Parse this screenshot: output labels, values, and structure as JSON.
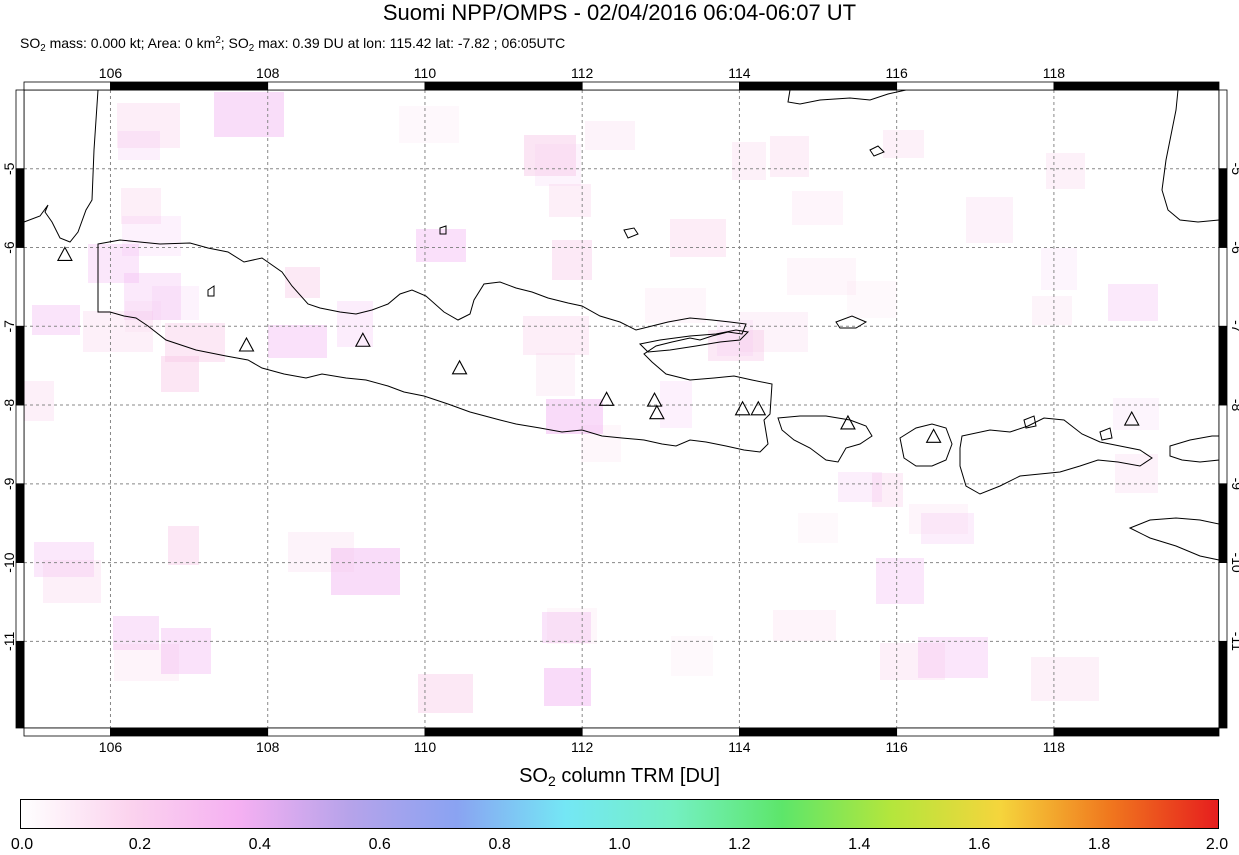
{
  "title": "Suomi NPP/OMPS - 02/04/2016 06:04-06:07 UT",
  "subtitle": {
    "part1": "SO",
    "sub1": "2",
    "part2": " mass: 0.000 kt; Area: 0 km",
    "sup1": "2",
    "part3": "; SO",
    "sub2": "2",
    "part4": " max: 0.39 DU at lon: 115.42 lat: -7.82 ; 06:05UTC"
  },
  "map": {
    "lon_range": [
      104.9,
      120.1
    ],
    "lat_range": [
      -12.1,
      -4.0
    ],
    "lon_ticks": [
      106,
      108,
      110,
      112,
      114,
      116,
      118
    ],
    "lat_ticks": [
      -5,
      -6,
      -7,
      -8,
      -9,
      -10,
      -11
    ],
    "volcano_markers": [
      {
        "lon": 105.42,
        "lat": -6.1
      },
      {
        "lon": 107.73,
        "lat": -7.25
      },
      {
        "lon": 109.21,
        "lat": -7.19
      },
      {
        "lon": 110.44,
        "lat": -7.54
      },
      {
        "lon": 112.31,
        "lat": -7.94
      },
      {
        "lon": 112.92,
        "lat": -7.95
      },
      {
        "lon": 112.95,
        "lat": -8.11
      },
      {
        "lon": 114.04,
        "lat": -8.06
      },
      {
        "lon": 114.24,
        "lat": -8.06
      },
      {
        "lon": 115.38,
        "lat": -8.24
      },
      {
        "lon": 116.47,
        "lat": -8.41
      },
      {
        "lon": 118.99,
        "lat": -8.19
      }
    ],
    "so2_max_location": {
      "lon": 115.42,
      "lat": -7.82,
      "value_du": 0.39
    },
    "colors": {
      "coast": "#000000",
      "grid": "#888888",
      "background": "#ffffff"
    }
  },
  "colorbar": {
    "title_main": "SO",
    "title_sub": "2",
    "title_rest": " column TRM [DU]",
    "range": [
      0.0,
      2.0
    ],
    "tick_labels": [
      "0.0",
      "0.2",
      "0.4",
      "0.6",
      "0.8",
      "1.0",
      "1.2",
      "1.4",
      "1.6",
      "1.8",
      "2.0"
    ],
    "colors": [
      "#ffffff",
      "#fbd3ee",
      "#f5b0f2",
      "#b7a3ea",
      "#8aa3f2",
      "#74e7f5",
      "#74f0c2",
      "#5de66a",
      "#b4e63c",
      "#f5d53c",
      "#f0781e",
      "#e61e1e"
    ]
  }
}
